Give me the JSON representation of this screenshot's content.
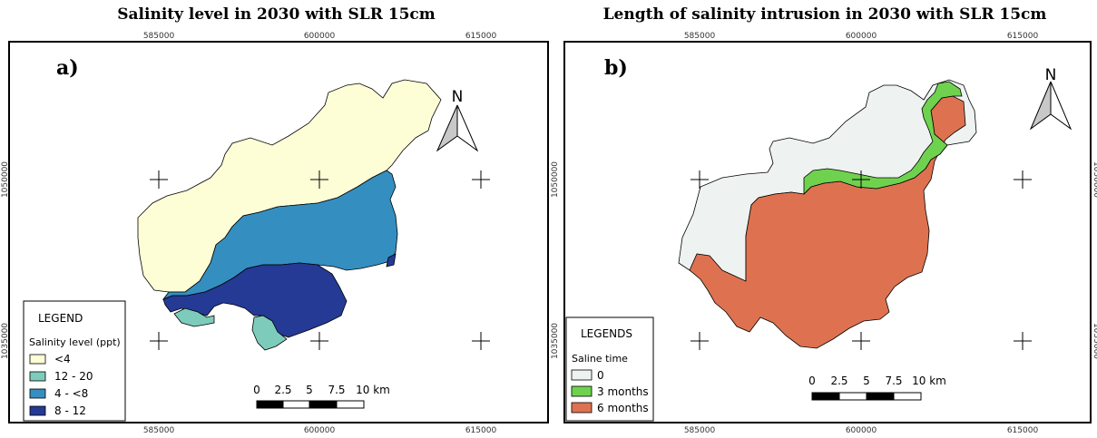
{
  "maps": [
    {
      "panel": "a)",
      "title": "Salinity level in 2030 with SLR 15cm",
      "x_ticks": [
        "585000",
        "600000",
        "615000"
      ],
      "y_ticks": [
        "1050000",
        "1035000"
      ],
      "north": "N",
      "scale": {
        "labels": [
          "0",
          "2.5",
          "5",
          "7.5",
          "10 km"
        ]
      },
      "legend": {
        "title": "LEGEND",
        "subtitle": "Salinity level (ppt)",
        "items": [
          {
            "label": "<4",
            "color": "#fdfdd6"
          },
          {
            "label": "12 - 20",
            "color": "#7dccbb"
          },
          {
            "label": "4 - <8",
            "color": "#348fc0"
          },
          {
            "label": "8 - 12",
            "color": "#253a94"
          }
        ]
      }
    },
    {
      "panel": "b)",
      "title": "Length of salinity intrusion in 2030 with SLR 15cm",
      "x_ticks": [
        "585000",
        "600000",
        "615000"
      ],
      "y_ticks": [
        "1050000",
        "1035000"
      ],
      "north": "N",
      "scale": {
        "labels": [
          "0",
          "2.5",
          "5",
          "7.5",
          "10 km"
        ]
      },
      "legend": {
        "title": "LEGENDS",
        "subtitle": "Saline time",
        "items": [
          {
            "label": "0",
            "color": "#eef3f2"
          },
          {
            "label": "3 months",
            "color": "#6fd24f"
          },
          {
            "label": "6 months",
            "color": "#de7250"
          }
        ]
      }
    }
  ]
}
